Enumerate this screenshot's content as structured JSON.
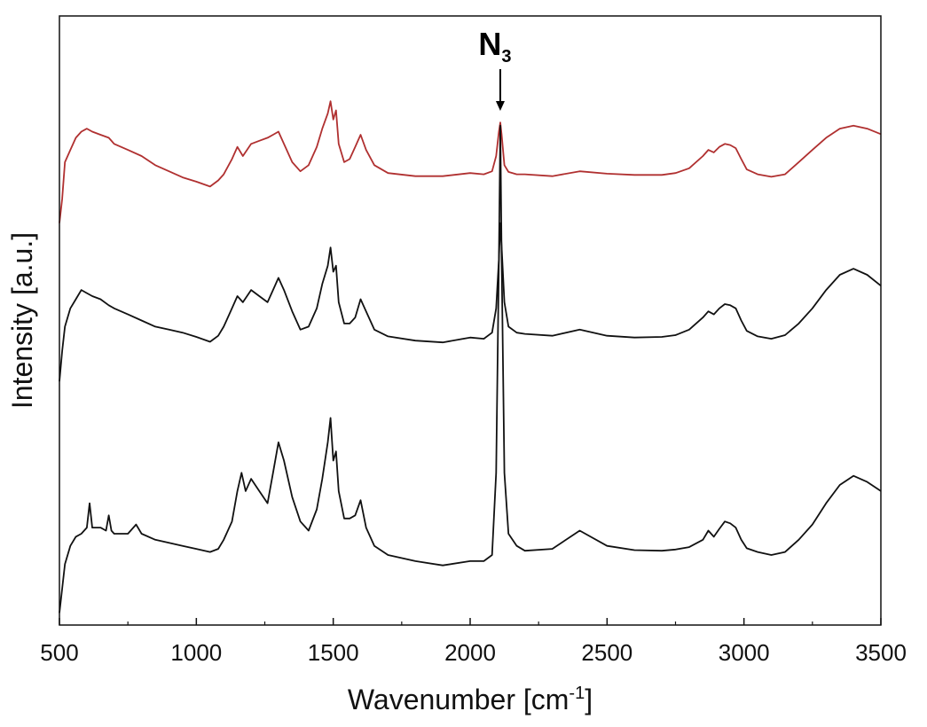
{
  "chart_data": {
    "type": "line",
    "xlabel": "Wavenumber [cm",
    "xlabel_sup": "-1",
    "xlabel_suffix": "]",
    "ylabel": "Intensity [a.u.]",
    "xlim": [
      500,
      3500
    ],
    "ylim": [
      0,
      100
    ],
    "xticks": [
      500,
      1000,
      1500,
      2000,
      2500,
      3000,
      3500
    ],
    "xtick_labels": [
      "500",
      "1000",
      "1500",
      "2000",
      "2500",
      "3000",
      "3500"
    ],
    "grid": false,
    "y_tick_labels": false,
    "annotations": [
      {
        "text": "N",
        "sub": "3",
        "x": 2110,
        "arrow": true
      }
    ],
    "series": [
      {
        "color": "#b03030",
        "x": [
          500,
          510,
          520,
          540,
          560,
          580,
          600,
          620,
          650,
          680,
          700,
          750,
          800,
          850,
          900,
          950,
          1000,
          1050,
          1080,
          1100,
          1130,
          1150,
          1170,
          1200,
          1230,
          1260,
          1280,
          1300,
          1320,
          1350,
          1380,
          1410,
          1440,
          1460,
          1480,
          1490,
          1500,
          1510,
          1520,
          1540,
          1560,
          1580,
          1600,
          1620,
          1650,
          1700,
          1800,
          1900,
          2000,
          2050,
          2080,
          2095,
          2105,
          2110,
          2115,
          2125,
          2140,
          2170,
          2200,
          2300,
          2400,
          2500,
          2600,
          2700,
          2750,
          2800,
          2850,
          2870,
          2890,
          2910,
          2930,
          2950,
          2970,
          2990,
          3010,
          3050,
          3100,
          3150,
          3200,
          3250,
          3300,
          3350,
          3400,
          3450,
          3500
        ],
        "y": [
          66,
          70,
          76,
          78,
          80,
          81,
          81.5,
          81,
          80.5,
          80,
          79,
          78,
          77,
          75.5,
          74.5,
          73.5,
          72.8,
          72,
          73,
          74,
          76.5,
          78.5,
          77,
          79,
          79.5,
          80,
          80.5,
          81,
          79,
          76,
          74.5,
          75.5,
          78.5,
          81.5,
          84,
          86,
          83,
          84.5,
          79,
          76,
          76.5,
          78.5,
          80.5,
          78,
          75.5,
          74.2,
          73.7,
          73.7,
          74.2,
          74,
          74.5,
          77,
          81,
          82.5,
          80.5,
          75.5,
          74.4,
          74,
          74,
          73.7,
          74.5,
          74.1,
          73.9,
          73.9,
          74.2,
          75,
          77,
          78,
          77.6,
          78.5,
          79,
          78.8,
          78.3,
          76.5,
          74.8,
          74,
          73.6,
          74,
          76,
          78,
          80,
          81.5,
          82,
          81.5,
          80.6
        ]
      },
      {
        "color": "#111111",
        "x": [
          500,
          510,
          520,
          540,
          560,
          580,
          600,
          620,
          650,
          680,
          700,
          750,
          800,
          850,
          900,
          950,
          1000,
          1050,
          1080,
          1100,
          1130,
          1150,
          1170,
          1200,
          1230,
          1260,
          1280,
          1300,
          1320,
          1350,
          1380,
          1410,
          1440,
          1460,
          1480,
          1490,
          1500,
          1510,
          1520,
          1540,
          1560,
          1580,
          1600,
          1620,
          1650,
          1700,
          1800,
          1900,
          2000,
          2050,
          2080,
          2095,
          2105,
          2110,
          2115,
          2125,
          2140,
          2170,
          2200,
          2300,
          2400,
          2500,
          2600,
          2700,
          2750,
          2800,
          2850,
          2870,
          2890,
          2910,
          2930,
          2950,
          2970,
          2990,
          3010,
          3050,
          3100,
          3150,
          3200,
          3250,
          3300,
          3350,
          3400,
          3450,
          3500
        ],
        "y": [
          40,
          45,
          49,
          52,
          53.5,
          55,
          54.5,
          54,
          53.5,
          52.5,
          52,
          51,
          50,
          49,
          48.5,
          48,
          47.3,
          46.5,
          47.5,
          49,
          52,
          54,
          53,
          55,
          54,
          53,
          55,
          57,
          55,
          51.5,
          48.5,
          49,
          52,
          56,
          59,
          62,
          58,
          59,
          53,
          49.5,
          49.5,
          50.5,
          53.5,
          51.5,
          48.5,
          47.4,
          46.7,
          46.4,
          47.2,
          47,
          48,
          52,
          60,
          66,
          62,
          53,
          49,
          48,
          47.8,
          47.5,
          48.5,
          47.5,
          47.2,
          47.3,
          47.6,
          48.5,
          50.5,
          51.5,
          51,
          52,
          52.7,
          52.5,
          52,
          50,
          48.3,
          47.4,
          47,
          47.6,
          49.5,
          52,
          55,
          57.5,
          58.5,
          57.5,
          55.7
        ]
      },
      {
        "color": "#111111",
        "x": [
          500,
          510,
          520,
          540,
          560,
          580,
          600,
          610,
          620,
          650,
          670,
          680,
          690,
          700,
          750,
          780,
          800,
          850,
          900,
          950,
          1000,
          1050,
          1080,
          1100,
          1130,
          1150,
          1165,
          1180,
          1200,
          1230,
          1260,
          1280,
          1300,
          1320,
          1350,
          1380,
          1410,
          1440,
          1460,
          1480,
          1490,
          1500,
          1510,
          1520,
          1540,
          1560,
          1580,
          1600,
          1620,
          1650,
          1700,
          1800,
          1900,
          2000,
          2050,
          2080,
          2095,
          2105,
          2110,
          2115,
          2125,
          2140,
          2170,
          2200,
          2300,
          2400,
          2500,
          2600,
          2700,
          2750,
          2800,
          2850,
          2870,
          2890,
          2910,
          2930,
          2950,
          2970,
          2990,
          3010,
          3050,
          3100,
          3150,
          3200,
          3250,
          3300,
          3350,
          3400,
          3450,
          3500
        ],
        "y": [
          2,
          6,
          10,
          13,
          14.5,
          15,
          16,
          20,
          16,
          16,
          15.5,
          18,
          15.5,
          15,
          15,
          16.5,
          15,
          14,
          13.5,
          13,
          12.5,
          12,
          12.5,
          14,
          17,
          22,
          25,
          22,
          24,
          22,
          20,
          25,
          30,
          27,
          21,
          17,
          15.5,
          19,
          24,
          30,
          34,
          27,
          28.5,
          22,
          17.5,
          17.5,
          18,
          20.5,
          16,
          13,
          11.5,
          10.5,
          9.8,
          10.5,
          10.5,
          11.5,
          25,
          60,
          82,
          60,
          25,
          15,
          13,
          12.2,
          12.5,
          15.5,
          13,
          12.3,
          12.2,
          12.4,
          12.8,
          14,
          15.5,
          14.5,
          15.8,
          17,
          16.7,
          16,
          14,
          12.6,
          12,
          11.5,
          12,
          14,
          16.5,
          20,
          23,
          24.5,
          23.5,
          22
        ]
      }
    ]
  }
}
